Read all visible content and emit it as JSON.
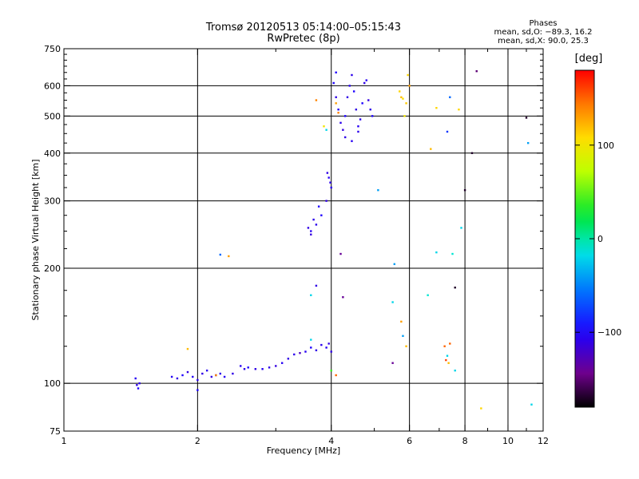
{
  "header": {
    "title_line1": "Tromsø 20120513 05:14:00–05:15:43",
    "title_line2": "RwPretec (8p)",
    "phases_title": "Phases",
    "phases_o": "mean, sd,O: −89.3, 16.2",
    "phases_x": "mean, sd,X:  90.0, 25.3"
  },
  "colorbar": {
    "unit": "[deg]",
    "min": -180,
    "max": 180,
    "ticks": [
      {
        "value": 100,
        "label": "100"
      },
      {
        "value": 0,
        "label": "0"
      },
      {
        "value": -100,
        "label": "−100"
      }
    ]
  },
  "chart_data": {
    "type": "scatter",
    "title": "Tromsø 20120513 05:14:00–05:15:43",
    "subtitle": "RwPretec (8p)",
    "xlabel": "Frequency [MHz]",
    "ylabel": "Stationary phase Virtual Height [km]",
    "x_scale": "log",
    "y_scale": "log",
    "xlim": [
      1,
      12
    ],
    "ylim": [
      75,
      750
    ],
    "x_ticks": [
      {
        "value": 1,
        "label": "1"
      },
      {
        "value": 2,
        "label": "2"
      },
      {
        "value": 4,
        "label": "4"
      },
      {
        "value": 6,
        "label": "6"
      },
      {
        "value": 8,
        "label": "8"
      },
      {
        "value": 10,
        "label": "10"
      },
      {
        "value": 12,
        "label": "12"
      }
    ],
    "y_ticks": [
      {
        "value": 75,
        "label": "75"
      },
      {
        "value": 100,
        "label": "100"
      },
      {
        "value": 200,
        "label": "200"
      },
      {
        "value": 300,
        "label": "300"
      },
      {
        "value": 400,
        "label": "400"
      },
      {
        "value": 500,
        "label": "500"
      },
      {
        "value": 600,
        "label": "600"
      },
      {
        "value": 750,
        "label": "750"
      }
    ],
    "grid_x": [
      2,
      4,
      6,
      8,
      10
    ],
    "grid_y": [
      100,
      200,
      300,
      400,
      500,
      600
    ],
    "color_encodes": "phase [deg]",
    "points": [
      [
        1.45,
        103,
        -105
      ],
      [
        1.46,
        99,
        -110
      ],
      [
        1.47,
        97,
        -100
      ],
      [
        1.48,
        100,
        -108
      ],
      [
        1.75,
        104,
        -105
      ],
      [
        1.8,
        103,
        -110
      ],
      [
        1.85,
        105,
        -100
      ],
      [
        1.9,
        107,
        -112
      ],
      [
        1.95,
        104,
        -105
      ],
      [
        2.0,
        102,
        -108
      ],
      [
        2.0,
        96,
        -100
      ],
      [
        2.05,
        106,
        -110
      ],
      [
        2.1,
        108,
        -105
      ],
      [
        2.15,
        104,
        -112
      ],
      [
        2.2,
        105,
        -100
      ],
      [
        2.25,
        106,
        -108
      ],
      [
        2.3,
        104,
        -105
      ],
      [
        2.4,
        106,
        -110
      ],
      [
        2.5,
        111,
        -105
      ],
      [
        2.55,
        109,
        -108
      ],
      [
        2.6,
        110,
        -100
      ],
      [
        2.7,
        109,
        -110
      ],
      [
        2.8,
        109,
        -105
      ],
      [
        2.9,
        110,
        -108
      ],
      [
        3.0,
        111,
        -112
      ],
      [
        3.1,
        113,
        -105
      ],
      [
        3.2,
        116,
        -110
      ],
      [
        3.3,
        119,
        -108
      ],
      [
        3.4,
        120,
        -125
      ],
      [
        3.5,
        121,
        -105
      ],
      [
        3.6,
        124,
        -100
      ],
      [
        3.7,
        122,
        -110
      ],
      [
        3.8,
        126,
        -108
      ],
      [
        3.9,
        124,
        -105
      ],
      [
        3.95,
        127,
        -112
      ],
      [
        4.0,
        121,
        -110
      ],
      [
        3.55,
        255,
        -110
      ],
      [
        3.6,
        250,
        -105
      ],
      [
        3.7,
        260,
        -108
      ],
      [
        3.8,
        275,
        -100
      ],
      [
        3.9,
        300,
        -110
      ],
      [
        4.0,
        325,
        -105
      ],
      [
        3.6,
        245,
        -112
      ],
      [
        3.65,
        268,
        -108
      ],
      [
        3.75,
        290,
        -100
      ],
      [
        3.92,
        355,
        -110
      ],
      [
        3.95,
        345,
        -105
      ],
      [
        3.98,
        335,
        -108
      ],
      [
        4.05,
        610,
        -100
      ],
      [
        4.1,
        560,
        -110
      ],
      [
        4.15,
        520,
        -105
      ],
      [
        4.2,
        480,
        -108
      ],
      [
        4.25,
        460,
        -112
      ],
      [
        4.3,
        500,
        -100
      ],
      [
        4.35,
        560,
        -110
      ],
      [
        4.4,
        600,
        -105
      ],
      [
        4.45,
        640,
        -108
      ],
      [
        4.5,
        580,
        -100
      ],
      [
        4.55,
        520,
        -110
      ],
      [
        4.6,
        470,
        -105
      ],
      [
        4.65,
        490,
        -108
      ],
      [
        4.7,
        540,
        -100
      ],
      [
        4.75,
        610,
        -110
      ],
      [
        4.8,
        620,
        -105
      ],
      [
        4.85,
        550,
        -112
      ],
      [
        4.9,
        520,
        -108
      ],
      [
        4.95,
        500,
        -100
      ],
      [
        4.3,
        440,
        -110
      ],
      [
        4.45,
        430,
        -105
      ],
      [
        4.6,
        455,
        -108
      ],
      [
        4.1,
        650,
        -100
      ],
      [
        5.7,
        580,
        110
      ],
      [
        5.75,
        560,
        120
      ],
      [
        5.8,
        555,
        105
      ],
      [
        5.9,
        540,
        115
      ],
      [
        5.85,
        500,
        100
      ],
      [
        5.95,
        640,
        110
      ],
      [
        6.0,
        600,
        130
      ],
      [
        3.7,
        550,
        140
      ],
      [
        3.85,
        470,
        100
      ],
      [
        3.9,
        460,
        -20
      ],
      [
        4.1,
        540,
        130
      ],
      [
        4.15,
        510,
        140
      ],
      [
        5.1,
        320,
        -40
      ],
      [
        4.2,
        218,
        -140
      ],
      [
        5.55,
        205,
        -40
      ],
      [
        2.25,
        217,
        -60
      ],
      [
        2.35,
        215,
        130
      ],
      [
        3.7,
        180,
        -110
      ],
      [
        3.6,
        170,
        -20
      ],
      [
        4.25,
        168,
        -140
      ],
      [
        5.5,
        163,
        -20
      ],
      [
        6.6,
        170,
        -10
      ],
      [
        7.6,
        178,
        -170
      ],
      [
        3.6,
        130,
        -20
      ],
      [
        5.75,
        145,
        130
      ],
      [
        5.8,
        133,
        -40
      ],
      [
        5.9,
        125,
        120
      ],
      [
        7.2,
        125,
        150
      ],
      [
        7.4,
        127,
        150
      ],
      [
        7.25,
        115,
        160
      ],
      [
        7.3,
        118,
        -20
      ],
      [
        7.35,
        113,
        120
      ],
      [
        5.5,
        113,
        -140
      ],
      [
        4.1,
        105,
        150
      ],
      [
        4.0,
        108,
        40
      ],
      [
        1.9,
        123,
        120
      ],
      [
        2.2,
        105,
        140
      ],
      [
        6.9,
        220,
        -20
      ],
      [
        7.5,
        218,
        -10
      ],
      [
        8.0,
        320,
        -170
      ],
      [
        7.85,
        255,
        -20
      ],
      [
        8.3,
        400,
        -170
      ],
      [
        8.5,
        655,
        -150
      ],
      [
        7.4,
        560,
        -60
      ],
      [
        7.75,
        520,
        110
      ],
      [
        7.3,
        455,
        -80
      ],
      [
        6.7,
        410,
        120
      ],
      [
        6.9,
        525,
        110
      ],
      [
        8.7,
        86,
        110
      ],
      [
        7.6,
        108,
        -20
      ],
      [
        11.0,
        495,
        -170
      ],
      [
        11.1,
        425,
        -40
      ],
      [
        11.3,
        88,
        -20
      ]
    ]
  }
}
